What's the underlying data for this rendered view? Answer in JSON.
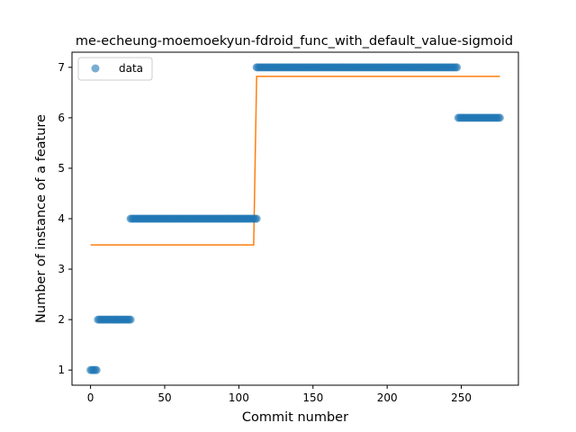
{
  "chart_data": {
    "type": "scatter",
    "title": "me-echeung-moemoekyun-fdroid_func_with_default_value-sigmoid",
    "xlabel": "Commit number",
    "ylabel": "Number of instance of a feature",
    "xlim": [
      -12.5,
      288.5
    ],
    "ylim": [
      0.7,
      7.3
    ],
    "xticks": [
      0,
      50,
      100,
      150,
      200,
      250
    ],
    "yticks": [
      1,
      2,
      3,
      4,
      5,
      6,
      7
    ],
    "grid": false,
    "legend": {
      "position": "upper-left",
      "entries": [
        "data"
      ]
    },
    "colors": {
      "data": "#1f77b4",
      "fit": "#ff7f0e"
    },
    "series": [
      {
        "name": "data",
        "kind": "scatter",
        "runs": [
          {
            "x_start": 0,
            "x_end": 4,
            "y": 1
          },
          {
            "x_start": 5,
            "x_end": 27,
            "y": 2
          },
          {
            "x_start": 27,
            "x_end": 112,
            "y": 4
          },
          {
            "x_start": 112,
            "x_end": 247,
            "y": 7
          },
          {
            "x_start": 248,
            "x_end": 276,
            "y": 6
          }
        ]
      },
      {
        "kind": "line",
        "x": [
          0,
          110,
          112,
          276
        ],
        "y": [
          3.48,
          3.48,
          6.82,
          6.82
        ]
      }
    ]
  }
}
